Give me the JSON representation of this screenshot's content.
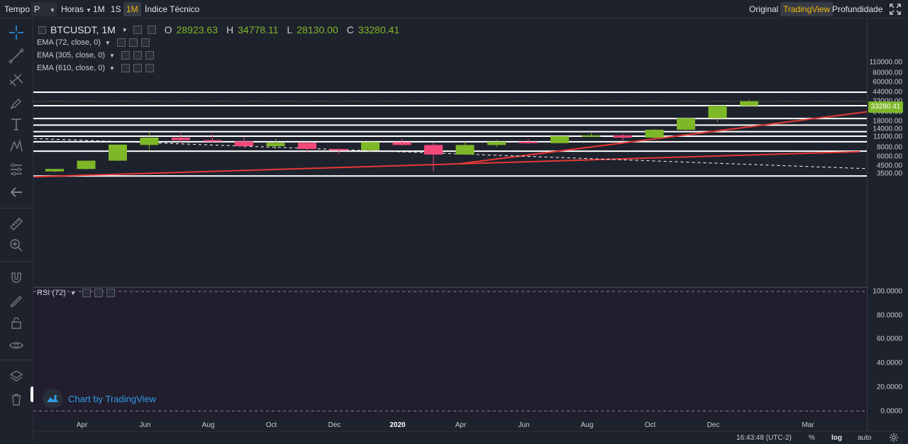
{
  "toolbar": {
    "tempo_label": "Tempo",
    "period_value": "P",
    "hours_label": "Horas",
    "btn_1m": "1M",
    "btn_1s": "1S",
    "btn_1M_active": "1M",
    "indicators_label": "Índice Técnico",
    "view_original": "Original",
    "view_tradingview": "TradingView",
    "view_depth": "Profundidade"
  },
  "legend": {
    "symbol": "BTCUSDT, 1M",
    "open_key": "O",
    "open": "28923.63",
    "high_key": "H",
    "high": "34778.11",
    "low_key": "L",
    "low": "28130.00",
    "close_key": "C",
    "close": "33280.41",
    "ema": [
      "EMA (72, close, 0)",
      "EMA (305, close, 0)",
      "EMA (610, close, 0)"
    ],
    "rsi": "RSI (72)"
  },
  "price_axis": [
    "110000.00",
    "80000.00",
    "60000.00",
    "44000.00",
    "33000.00",
    "24000.00",
    "18000.00",
    "14000.00",
    "11000.00",
    "8000.00",
    "6000.00",
    "4500.00",
    "3500.00"
  ],
  "last_price": "33280.41",
  "rsi_axis": [
    "100.0000",
    "80.0000",
    "60.0000",
    "40.0000",
    "20.0000",
    "0.0000"
  ],
  "time_axis": [
    "Apr",
    "Jun",
    "Aug",
    "Oct",
    "Dec",
    "2020",
    "Apr",
    "Jun",
    "Aug",
    "Oct",
    "Dec",
    "Mar"
  ],
  "footer": {
    "time": "16:43:48 (UTC-2)",
    "percent": "%",
    "log": "log",
    "auto": "auto"
  },
  "watermark": "Chart by TradingView",
  "colors": {
    "up": "#7eb728",
    "down": "#f2497a",
    "accent": "#f0b90b",
    "trend": "#e53935",
    "background": "#1e222d"
  },
  "chart_data": {
    "type": "candlestick",
    "scale": "log",
    "interval": "1M",
    "categories": [
      "2019-03",
      "2019-04",
      "2019-05",
      "2019-06",
      "2019-07",
      "2019-08",
      "2019-09",
      "2019-10",
      "2019-11",
      "2019-12",
      "2020-01",
      "2020-02",
      "2020-03",
      "2020-04",
      "2020-05",
      "2020-06",
      "2020-07",
      "2020-08",
      "2020-09",
      "2020-10",
      "2020-11",
      "2020-12",
      "2021-01"
    ],
    "ohlc": [
      [
        3800,
        4100,
        3700,
        4100
      ],
      [
        4100,
        5300,
        4000,
        5300
      ],
      [
        5300,
        8700,
        5200,
        8600
      ],
      [
        8600,
        10800,
        7500,
        12900
      ],
      [
        10800,
        10000,
        9100,
        12400
      ],
      [
        10000,
        9600,
        9400,
        12100
      ],
      [
        9600,
        8300,
        7800,
        10900
      ],
      [
        8300,
        9200,
        7600,
        10400
      ],
      [
        9200,
        7600,
        6800,
        9500
      ],
      [
        7600,
        7300,
        6500,
        7700
      ],
      [
        7300,
        9400,
        7000,
        9600
      ],
      [
        9400,
        8600,
        8400,
        10500
      ],
      [
        8600,
        6400,
        3800,
        9200
      ],
      [
        6400,
        8600,
        6400,
        9500
      ],
      [
        8600,
        9500,
        8100,
        10100
      ],
      [
        9500,
        9100,
        8900,
        10400
      ],
      [
        9100,
        11300,
        9000,
        11500
      ],
      [
        11300,
        11600,
        11000,
        12400
      ],
      [
        11600,
        10800,
        9900,
        12000
      ],
      [
        10800,
        13800,
        10500,
        14100
      ],
      [
        13800,
        19700,
        13200,
        19900
      ],
      [
        19700,
        29000,
        17600,
        29300
      ],
      [
        28923.63,
        33280.41,
        28130.0,
        34778.11
      ]
    ],
    "candle_colors": [
      "up",
      "up",
      "up",
      "up",
      "down",
      "down",
      "down",
      "up",
      "down",
      "down",
      "up",
      "down",
      "down",
      "up",
      "up",
      "down",
      "up",
      "up",
      "down",
      "up",
      "up",
      "up",
      "up"
    ],
    "horizontal_levels": [
      44000,
      29000,
      19500,
      15900,
      13000,
      11300,
      9500,
      7100,
      3300
    ]
  }
}
